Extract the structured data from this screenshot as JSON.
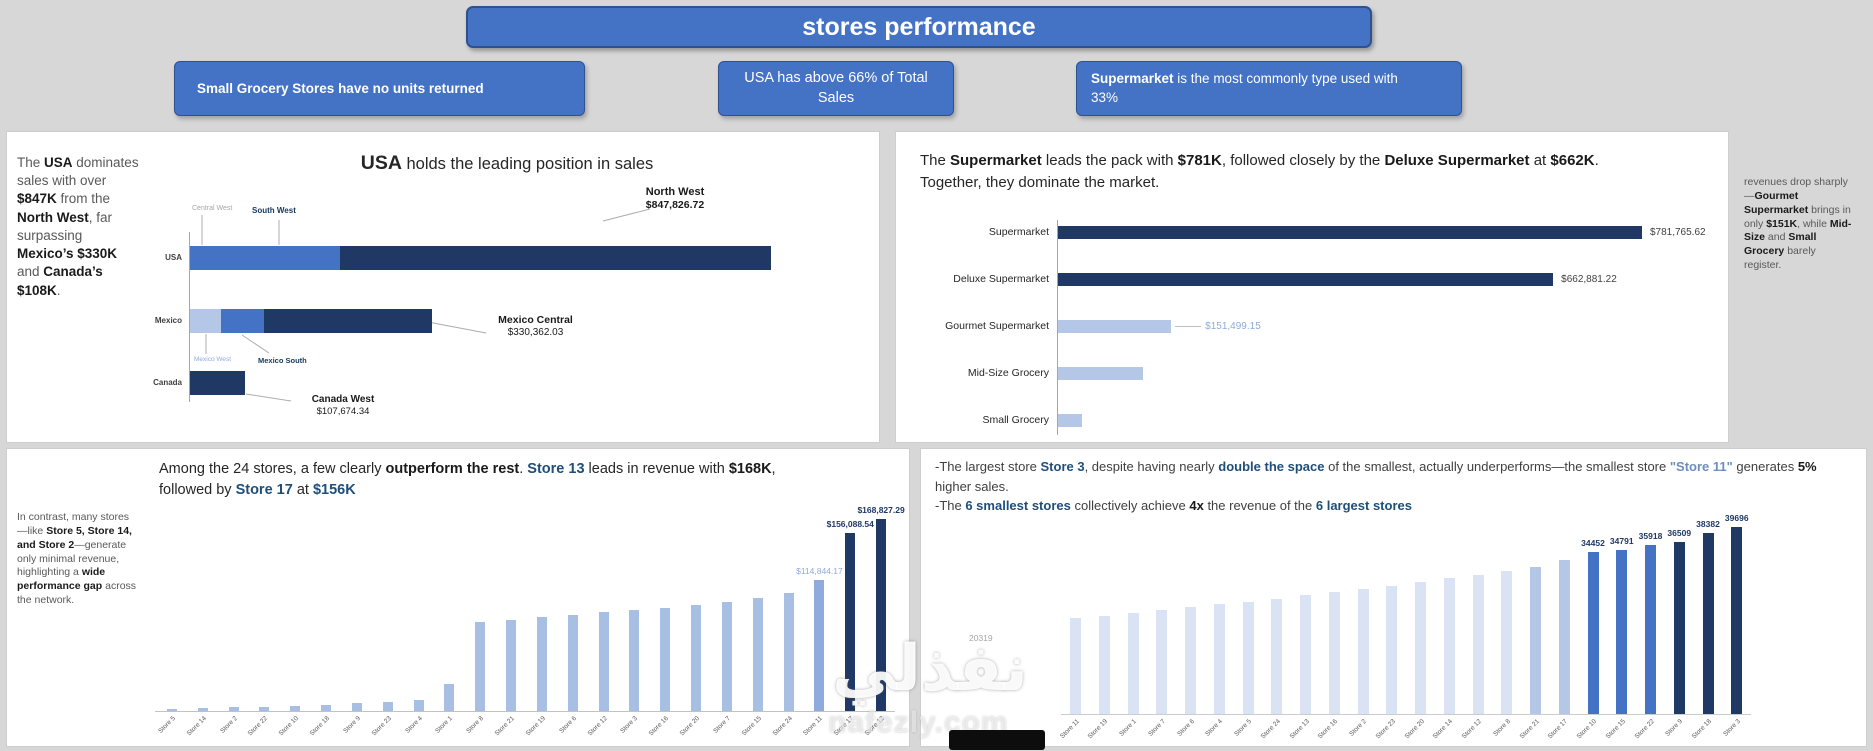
{
  "colors": {
    "background": "#D7D7D7",
    "panel": "#FFFFFF",
    "accent": "#4472C4",
    "accent_border": "#2F528F",
    "navy": "#1F3864",
    "medium_blue": "#4472C4",
    "light_blue": "#8FAADC",
    "pale_blue": "#B4C7E7",
    "paler_blue": "#DAE3F3",
    "steel_blue": "#A6BFE2",
    "label_gray": "#A6A6A6",
    "text_dark": "#262626",
    "text_gray": "#595959",
    "story_blue": "#1F4E79"
  },
  "header": {
    "title": "stores performance"
  },
  "callouts": [
    {
      "segments": [
        {
          "t": "Small Grocery Stores have no units returned",
          "c": "b"
        }
      ]
    },
    {
      "segments": [
        {
          "t": "USA has above 66% of Total Sales"
        }
      ]
    },
    {
      "segments": [
        {
          "t": "Supermarket",
          "c": "b"
        },
        {
          "t": " is the most commonly type used with 33%"
        }
      ]
    }
  ],
  "panels": {
    "regions": {
      "title": [
        {
          "t": "USA",
          "c": "tb"
        },
        {
          "t": " holds the leading position in sales"
        }
      ],
      "narrative": [
        {
          "t": "The "
        },
        {
          "t": "USA",
          "c": "bd"
        },
        {
          "t": " dominates sales with over "
        },
        {
          "t": "$847K",
          "c": "bd"
        },
        {
          "t": " from the "
        },
        {
          "t": "North West",
          "c": "bd"
        },
        {
          "t": ", far surpassing "
        },
        {
          "t": "Mexico’s $330K",
          "c": "bd"
        },
        {
          "t": " and "
        },
        {
          "t": "Canada’s $108K",
          "c": "bd"
        },
        {
          "t": "."
        }
      ]
    },
    "store_types": {
      "narrative": [
        {
          "t": "The "
        },
        {
          "t": "Supermarket",
          "c": "bd"
        },
        {
          "t": " leads the pack with "
        },
        {
          "t": "$781K",
          "c": "bd"
        },
        {
          "t": ", followed closely by the "
        },
        {
          "t": "Deluxe Supermarket",
          "c": "bd"
        },
        {
          "t": " at "
        },
        {
          "t": "$662K",
          "c": "bd"
        },
        {
          "t": ". Together, they dominate the market."
        }
      ],
      "side_note": [
        {
          "t": "revenues drop sharply—"
        },
        {
          "t": "Gourmet Supermarket",
          "c": "bd"
        },
        {
          "t": " brings in only "
        },
        {
          "t": "$151K",
          "c": "bd"
        },
        {
          "t": ", while "
        },
        {
          "t": "Mid-Size",
          "c": "bd"
        },
        {
          "t": " and "
        },
        {
          "t": "Small Grocery",
          "c": "bd"
        },
        {
          "t": " barely register."
        }
      ]
    },
    "store_revenue": {
      "narrative": [
        {
          "t": "Among the 24 stores, a few clearly "
        },
        {
          "t": "outperform the rest",
          "c": "bd"
        },
        {
          "t": ". "
        },
        {
          "t": "Store 13",
          "c": "bb"
        },
        {
          "t": " leads in revenue with "
        },
        {
          "t": "$168K",
          "c": "bd"
        },
        {
          "t": ", followed by "
        },
        {
          "t": "Store 17",
          "c": "bb"
        },
        {
          "t": " at "
        },
        {
          "t": "$156K",
          "c": "bb"
        }
      ],
      "side_note": [
        {
          "t": "In contrast, many stores—like "
        },
        {
          "t": "Store 5, Store 14, and Store 2",
          "c": "bd"
        },
        {
          "t": "—generate only minimal revenue, highlighting a "
        },
        {
          "t": "wide performance gap",
          "c": "bd"
        },
        {
          "t": " across the network."
        }
      ]
    },
    "store_size": {
      "narrative_line1": [
        {
          "t": "-The largest store "
        },
        {
          "t": "Store 3",
          "c": "bb"
        },
        {
          "t": ", despite having nearly "
        },
        {
          "t": "double the space",
          "c": "bb"
        },
        {
          "t": " of the smallest, actually underperforms—the smallest store "
        },
        {
          "t": "\"Store 11\"",
          "c": "lb"
        },
        {
          "t": " generates "
        },
        {
          "t": "5%",
          "c": "bd"
        },
        {
          "t": " higher sales."
        }
      ],
      "narrative_line2": [
        {
          "t": "-The "
        },
        {
          "t": "6 smallest stores",
          "c": "bb"
        },
        {
          "t": " collectively achieve "
        },
        {
          "t": "4x",
          "c": "bd"
        },
        {
          "t": " the revenue of the "
        },
        {
          "t": "6 largest stores",
          "c": "bb"
        }
      ]
    }
  },
  "chart_data": [
    {
      "id": "sales_by_region",
      "type": "stacked_bar_h",
      "title": "USA holds the leading position in sales",
      "xlim": [
        0,
        1160000
      ],
      "rows": [
        {
          "category": "USA",
          "segments": [
            {
              "name": "Central West",
              "value": 19000,
              "color_key": "medium_blue"
            },
            {
              "name": "South West",
              "value": 275000,
              "color_key": "medium_blue"
            },
            {
              "name": "North West",
              "value": 847826.72,
              "color_key": "navy"
            }
          ]
        },
        {
          "category": "Mexico",
          "segments": [
            {
              "name": "Mexico West",
              "value": 60000,
              "color_key": "pale_blue"
            },
            {
              "name": "Mexico South",
              "value": 85000,
              "color_key": "medium_blue"
            },
            {
              "name": "Mexico Central",
              "value": 330362.03,
              "color_key": "navy"
            }
          ]
        },
        {
          "category": "Canada",
          "segments": [
            {
              "name": "Canada West",
              "value": 107674.34,
              "color_key": "navy"
            }
          ]
        }
      ],
      "annotations": {
        "central_west": {
          "title": "Central West"
        },
        "south_west": {
          "title": "South West"
        },
        "north_west": {
          "title": "North West",
          "value": "$847,826.72"
        },
        "mexico_central": {
          "title": "Mexico Central",
          "value": "$330,362.03"
        },
        "mexico_west": {
          "title": "Mexico West"
        },
        "mexico_south": {
          "title": "Mexico South"
        },
        "canada_west": {
          "title": "Canada West",
          "value": "$107,674.34"
        }
      }
    },
    {
      "id": "sales_by_store_type",
      "type": "bar_h",
      "xlim": [
        0,
        830000
      ],
      "rows": [
        {
          "category": "Supermarket",
          "value": 781765.62,
          "value_label": "$781,765.62",
          "color_key": "navy",
          "label_style": "dark"
        },
        {
          "category": "Deluxe Supermarket",
          "value": 662881.22,
          "value_label": "$662,881.22",
          "color_key": "navy",
          "label_style": "dark"
        },
        {
          "category": "Gourmet Supermarket",
          "value": 151499.15,
          "value_label": "$151,499.15",
          "color_key": "pale_blue",
          "label_style": "light",
          "leader": true
        },
        {
          "category": "Mid-Size Grocery",
          "value": 114000,
          "value_label": "",
          "color_key": "pale_blue"
        },
        {
          "category": "Small Grocery",
          "value": 32000,
          "value_label": "",
          "color_key": "pale_blue"
        }
      ]
    },
    {
      "id": "revenue_by_store",
      "type": "bar",
      "ylim": [
        0,
        172000
      ],
      "bars": [
        {
          "category": "Store 5",
          "value": 1900,
          "color_key": "steel_blue"
        },
        {
          "category": "Store 14",
          "value": 2400,
          "color_key": "steel_blue"
        },
        {
          "category": "Store 2",
          "value": 3100,
          "color_key": "steel_blue"
        },
        {
          "category": "Store 22",
          "value": 3800,
          "color_key": "steel_blue"
        },
        {
          "category": "Store 10",
          "value": 4600,
          "color_key": "steel_blue"
        },
        {
          "category": "Store 18",
          "value": 5600,
          "color_key": "steel_blue"
        },
        {
          "category": "Store 9",
          "value": 6700,
          "color_key": "steel_blue"
        },
        {
          "category": "Store 23",
          "value": 8000,
          "color_key": "steel_blue"
        },
        {
          "category": "Store 4",
          "value": 9600,
          "color_key": "steel_blue"
        },
        {
          "category": "Store 1",
          "value": 24000,
          "color_key": "steel_blue"
        },
        {
          "category": "Store 8",
          "value": 78000,
          "color_key": "steel_blue"
        },
        {
          "category": "Store 21",
          "value": 80000,
          "color_key": "steel_blue"
        },
        {
          "category": "Store 19",
          "value": 82500,
          "color_key": "steel_blue"
        },
        {
          "category": "Store 6",
          "value": 84500,
          "color_key": "steel_blue"
        },
        {
          "category": "Store 12",
          "value": 86500,
          "color_key": "steel_blue"
        },
        {
          "category": "Store 3",
          "value": 88500,
          "color_key": "steel_blue"
        },
        {
          "category": "Store 16",
          "value": 90500,
          "color_key": "steel_blue"
        },
        {
          "category": "Store 20",
          "value": 93000,
          "color_key": "steel_blue"
        },
        {
          "category": "Store 7",
          "value": 95500,
          "color_key": "steel_blue"
        },
        {
          "category": "Store 15",
          "value": 99000,
          "color_key": "steel_blue"
        },
        {
          "category": "Store 24",
          "value": 104000,
          "color_key": "steel_blue"
        },
        {
          "category": "Store 11",
          "value": 114844.17,
          "label": "$114,844.17",
          "label_style": "light",
          "color_key": "light_blue"
        },
        {
          "category": "Store 17",
          "value": 156088.54,
          "label": "$156,088.54",
          "label_style": "navy",
          "color_key": "navy"
        },
        {
          "category": "Store 13",
          "value": 168827.29,
          "label": "$168,827.29",
          "label_style": "navy",
          "color_key": "navy"
        }
      ]
    },
    {
      "id": "sales_by_store_size",
      "type": "bar",
      "ylim": [
        0,
        41000
      ],
      "stray_label": "20319",
      "bars": [
        {
          "category": "Store 11",
          "value": 20319,
          "color_key": "paler_blue"
        },
        {
          "category": "Store 19",
          "value": 20900,
          "color_key": "paler_blue"
        },
        {
          "category": "Store 1",
          "value": 21500,
          "color_key": "paler_blue"
        },
        {
          "category": "Store 7",
          "value": 22100,
          "color_key": "paler_blue"
        },
        {
          "category": "Store 6",
          "value": 22700,
          "color_key": "paler_blue"
        },
        {
          "category": "Store 4",
          "value": 23300,
          "color_key": "paler_blue"
        },
        {
          "category": "Store 5",
          "value": 23900,
          "color_key": "paler_blue"
        },
        {
          "category": "Store 24",
          "value": 24500,
          "color_key": "paler_blue"
        },
        {
          "category": "Store 13",
          "value": 25200,
          "color_key": "paler_blue"
        },
        {
          "category": "Store 16",
          "value": 25900,
          "color_key": "paler_blue"
        },
        {
          "category": "Store 2",
          "value": 26600,
          "color_key": "paler_blue"
        },
        {
          "category": "Store 23",
          "value": 27300,
          "color_key": "paler_blue"
        },
        {
          "category": "Store 20",
          "value": 28000,
          "color_key": "paler_blue"
        },
        {
          "category": "Store 14",
          "value": 28800,
          "color_key": "paler_blue"
        },
        {
          "category": "Store 12",
          "value": 29600,
          "color_key": "paler_blue"
        },
        {
          "category": "Store 8",
          "value": 30400,
          "color_key": "paler_blue"
        },
        {
          "category": "Store 21",
          "value": 31300,
          "color_key": "pale_blue"
        },
        {
          "category": "Store 17",
          "value": 32800,
          "color_key": "pale_blue"
        },
        {
          "category": "Store 10",
          "value": 34452,
          "label": "34452",
          "label_style": "navy",
          "color_key": "medium_blue"
        },
        {
          "category": "Store 15",
          "value": 34791,
          "label": "34791",
          "label_style": "navy",
          "color_key": "medium_blue"
        },
        {
          "category": "Store 22",
          "value": 35918,
          "label": "35918",
          "label_style": "navy",
          "color_key": "medium_blue"
        },
        {
          "category": "Store 9",
          "value": 36509,
          "label": "36509",
          "label_style": "navy",
          "color_key": "navy"
        },
        {
          "category": "Store 18",
          "value": 38382,
          "label": "38382",
          "label_style": "navy",
          "color_key": "navy"
        },
        {
          "category": "Store 3",
          "value": 39696,
          "label": "39696",
          "label_style": "navy",
          "color_key": "navy"
        }
      ]
    }
  ],
  "watermark": {
    "arabic": "نفذلي",
    "domain": "nafezly.com"
  }
}
